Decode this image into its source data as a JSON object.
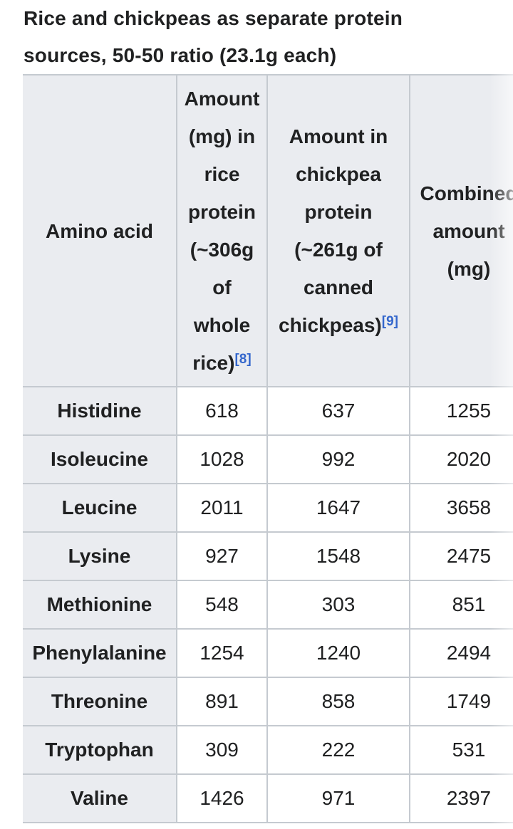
{
  "title": "Rice and chickpeas as separate protein sources, 50-50 ratio (23.1g each)",
  "table": {
    "columns": {
      "amino_acid": "Amino acid",
      "rice": "Amount\n(mg) in\nrice\nprotein\n(~306g\nof\nwhole\nrice)",
      "rice_ref": "[8]",
      "chickpea": "Amount in\nchickpea\nprotein\n(~261g of\ncanned\nchickpeas)",
      "chickpea_ref": "[9]",
      "combined": "Combined\namount\n(mg)"
    },
    "rows": [
      {
        "name": "Histidine",
        "rice": "618",
        "chickpea": "637",
        "combined": "1255"
      },
      {
        "name": "Isoleucine",
        "rice": "1028",
        "chickpea": "992",
        "combined": "2020"
      },
      {
        "name": "Leucine",
        "rice": "2011",
        "chickpea": "1647",
        "combined": "3658"
      },
      {
        "name": "Lysine",
        "rice": "927",
        "chickpea": "1548",
        "combined": "2475"
      },
      {
        "name": "Methionine",
        "rice": "548",
        "chickpea": "303",
        "combined": "851"
      },
      {
        "name": "Phenylalanine",
        "rice": "1254",
        "chickpea": "1240",
        "combined": "2494"
      },
      {
        "name": "Threonine",
        "rice": "891",
        "chickpea": "858",
        "combined": "1749"
      },
      {
        "name": "Tryptophan",
        "rice": "309",
        "chickpea": "222",
        "combined": "531"
      },
      {
        "name": "Valine",
        "rice": "1426",
        "chickpea": "971",
        "combined": "2397"
      }
    ]
  },
  "colors": {
    "text": "#202122",
    "header_background": "#eaecf0",
    "row_label_background": "#eaecf0",
    "border": "#c5cad0",
    "reference_link": "#3366cc",
    "page_background": "#ffffff"
  }
}
